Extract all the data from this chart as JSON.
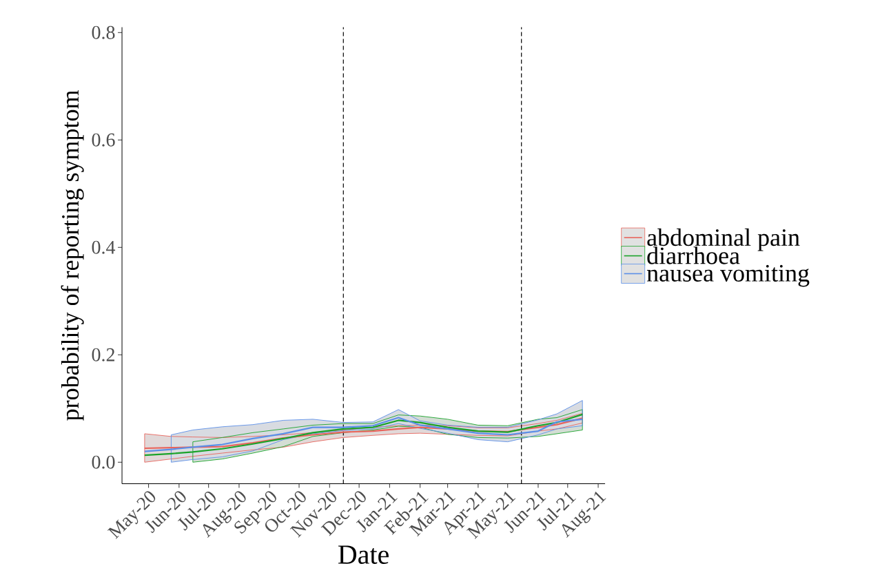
{
  "chart_data": {
    "type": "line",
    "xlabel": "Date",
    "ylabel": "probability of reporting symptom",
    "x": [
      "2020-04-27",
      "2020-05-24",
      "2020-06-15",
      "2020-07-15",
      "2020-08-15",
      "2020-09-15",
      "2020-10-15",
      "2020-11-15",
      "2020-12-15",
      "2021-01-10",
      "2021-02-01",
      "2021-03-01",
      "2021-04-01",
      "2021-05-01",
      "2021-06-01",
      "2021-06-20",
      "2021-07-16"
    ],
    "series": [
      {
        "name": "abdominal pain",
        "color": "#e8645c",
        "values": [
          0.026,
          0.027,
          0.028,
          0.029,
          0.036,
          0.045,
          0.051,
          0.056,
          0.058,
          0.062,
          0.065,
          0.062,
          0.058,
          0.057,
          0.065,
          0.07,
          0.082
        ],
        "upper": [
          0.053,
          0.048,
          0.047,
          0.046,
          0.048,
          0.051,
          0.055,
          0.06,
          0.065,
          0.068,
          0.069,
          0.068,
          0.064,
          0.064,
          0.072,
          0.078,
          0.091
        ],
        "lower": [
          0.0,
          0.006,
          0.011,
          0.017,
          0.023,
          0.028,
          0.038,
          0.046,
          0.05,
          0.053,
          0.054,
          0.052,
          0.05,
          0.049,
          0.058,
          0.062,
          0.073
        ]
      },
      {
        "name": "diarrhoea",
        "color": "#1aa32a",
        "values": [
          0.013,
          0.016,
          0.019,
          0.025,
          0.034,
          0.044,
          0.055,
          0.062,
          0.065,
          0.078,
          0.074,
          0.065,
          0.058,
          0.056,
          0.068,
          0.074,
          0.089
        ],
        "upper": [
          null,
          null,
          0.038,
          0.046,
          0.055,
          0.062,
          0.069,
          0.072,
          0.072,
          0.088,
          0.086,
          0.08,
          0.069,
          0.068,
          0.08,
          0.083,
          0.098
        ],
        "lower": [
          null,
          null,
          0.0,
          0.006,
          0.017,
          0.029,
          0.048,
          0.055,
          0.06,
          0.067,
          0.065,
          0.052,
          0.046,
          0.045,
          0.048,
          0.053,
          0.06
        ]
      },
      {
        "name": "nausea vomiting",
        "color": "#5b8fe8",
        "values": [
          0.02,
          0.024,
          0.028,
          0.033,
          0.044,
          0.053,
          0.065,
          0.065,
          0.068,
          0.083,
          0.069,
          0.062,
          0.054,
          0.051,
          0.058,
          0.075,
          0.08
        ],
        "upper": [
          null,
          0.051,
          0.06,
          0.066,
          0.07,
          0.078,
          0.08,
          0.074,
          0.075,
          0.098,
          0.077,
          0.069,
          0.065,
          0.065,
          0.079,
          0.09,
          0.115
        ],
        "lower": [
          null,
          0.0,
          0.005,
          0.01,
          0.021,
          0.042,
          0.053,
          0.059,
          0.062,
          0.072,
          0.063,
          0.054,
          0.042,
          0.038,
          0.051,
          0.062,
          0.068
        ]
      }
    ],
    "xlim": [
      "2020-04-04",
      "2021-08-08"
    ],
    "xticks": [
      {
        "value": "2020-05-01",
        "label": "May-20"
      },
      {
        "value": "2020-06-01",
        "label": "Jun-20"
      },
      {
        "value": "2020-07-01",
        "label": "Jul-20"
      },
      {
        "value": "2020-08-01",
        "label": "Aug-20"
      },
      {
        "value": "2020-09-01",
        "label": "Sep-20"
      },
      {
        "value": "2020-10-01",
        "label": "Oct-20"
      },
      {
        "value": "2020-11-01",
        "label": "Nov-20"
      },
      {
        "value": "2020-12-01",
        "label": "Dec-20"
      },
      {
        "value": "2021-01-01",
        "label": "Jan-21"
      },
      {
        "value": "2021-02-01",
        "label": "Feb-21"
      },
      {
        "value": "2021-03-01",
        "label": "Mar-21"
      },
      {
        "value": "2021-04-01",
        "label": "Apr-21"
      },
      {
        "value": "2021-05-01",
        "label": "May-21"
      },
      {
        "value": "2021-06-01",
        "label": "Jun-21"
      },
      {
        "value": "2021-07-01",
        "label": "Jul-21"
      },
      {
        "value": "2021-08-01",
        "label": "Aug-21"
      }
    ],
    "ylim": [
      -0.04,
      0.81
    ],
    "yticks": [
      {
        "value": 0.0,
        "label": "0.0"
      },
      {
        "value": 0.2,
        "label": "0.2"
      },
      {
        "value": 0.4,
        "label": "0.4"
      },
      {
        "value": 0.6,
        "label": "0.6"
      },
      {
        "value": 0.8,
        "label": "0.8"
      }
    ],
    "ref_lines": [
      {
        "axis": "x",
        "value": "2020-11-15",
        "color": "#000000",
        "line_style": "dashed"
      },
      {
        "axis": "x",
        "value": "2021-05-15",
        "color": "#000000",
        "line_style": "dashed"
      }
    ],
    "grid": false,
    "legend": "right"
  }
}
